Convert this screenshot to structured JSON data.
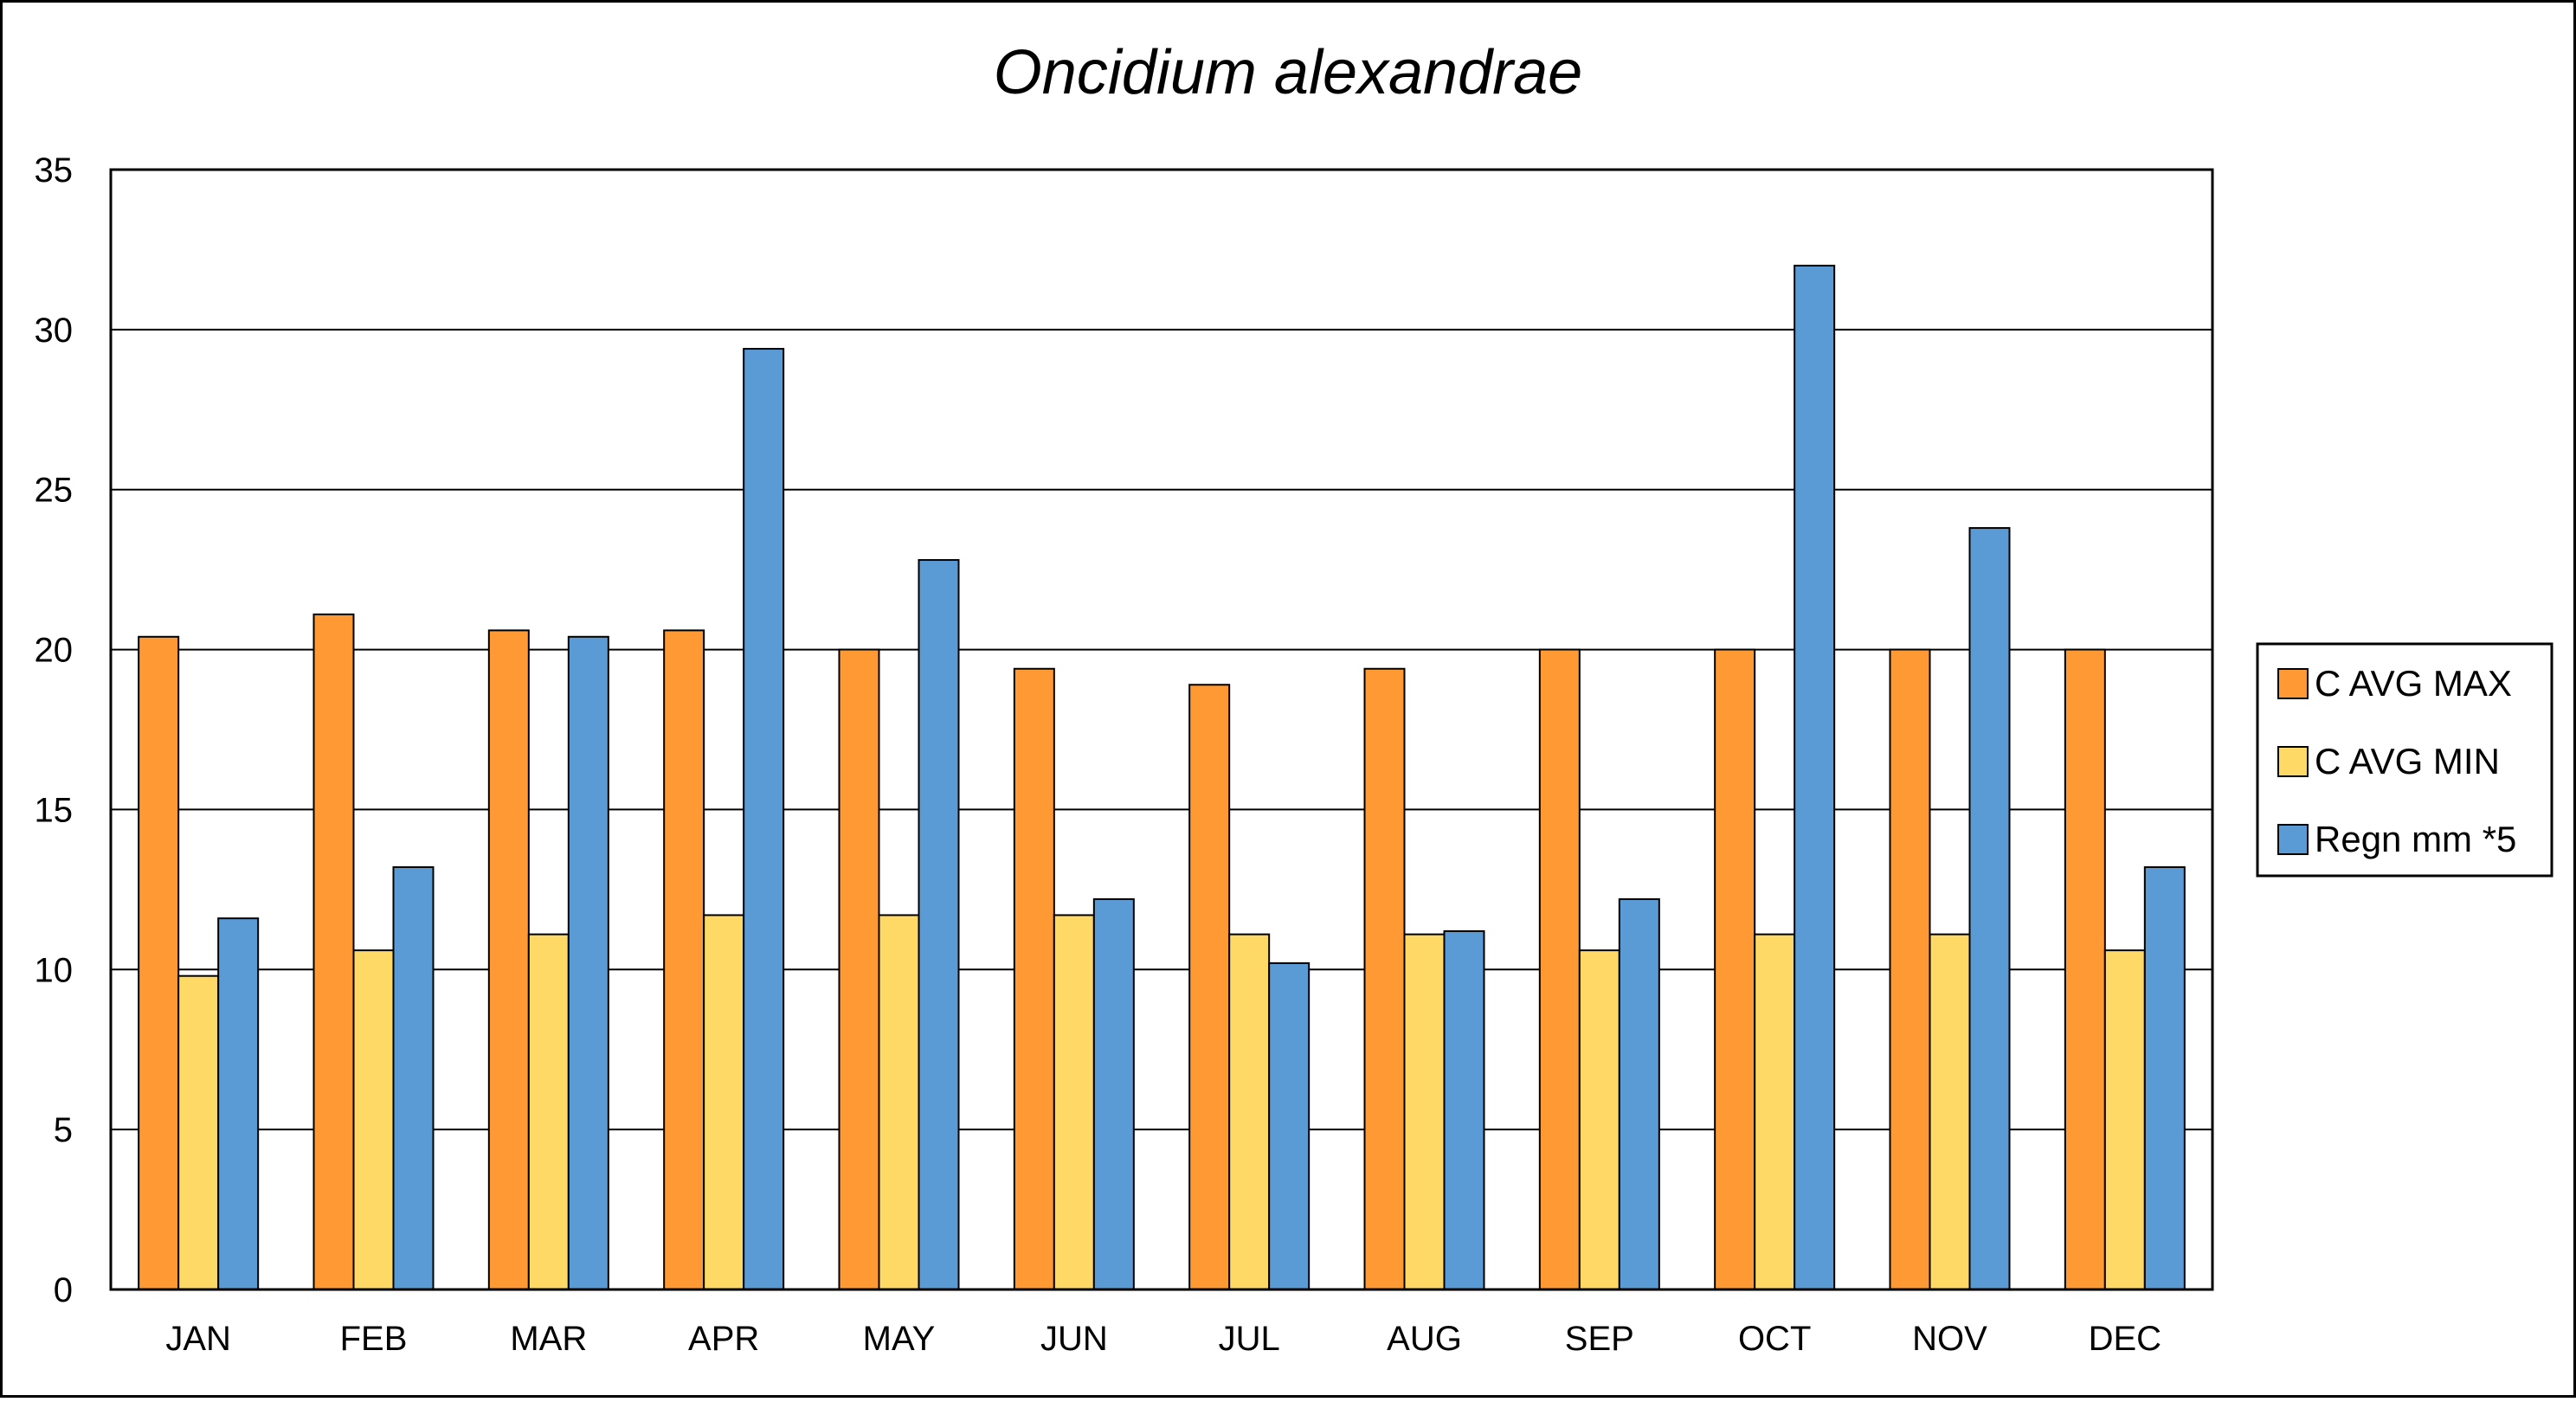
{
  "chart_data": {
    "type": "bar",
    "title": "Oncidium alexandrae",
    "xlabel": "",
    "ylabel": "",
    "categories": [
      "JAN",
      "FEB",
      "MAR",
      "APR",
      "MAY",
      "JUN",
      "JUL",
      "AUG",
      "SEP",
      "OCT",
      "NOV",
      "DEC"
    ],
    "series": [
      {
        "name": "C AVG MAX",
        "color": "#FF9933",
        "values": [
          20.4,
          21.1,
          20.6,
          20.6,
          20.0,
          19.4,
          18.9,
          19.4,
          20.0,
          20.0,
          20.0,
          20.0
        ]
      },
      {
        "name": "C AVG MIN",
        "color": "#FFD966",
        "values": [
          9.8,
          10.6,
          11.1,
          11.7,
          11.7,
          11.7,
          11.1,
          11.1,
          10.6,
          11.1,
          11.1,
          10.6
        ]
      },
      {
        "name": "Regn mm *5",
        "color": "#5B9BD5",
        "values": [
          11.6,
          13.2,
          20.4,
          29.4,
          22.8,
          12.2,
          10.2,
          11.2,
          12.2,
          32.0,
          23.8,
          13.2
        ]
      }
    ],
    "ylim": [
      0,
      35
    ],
    "yticks": [
      "0",
      "5",
      "10",
      "15",
      "20",
      "25",
      "30",
      "35"
    ],
    "grid": true,
    "legend_position": "right"
  }
}
